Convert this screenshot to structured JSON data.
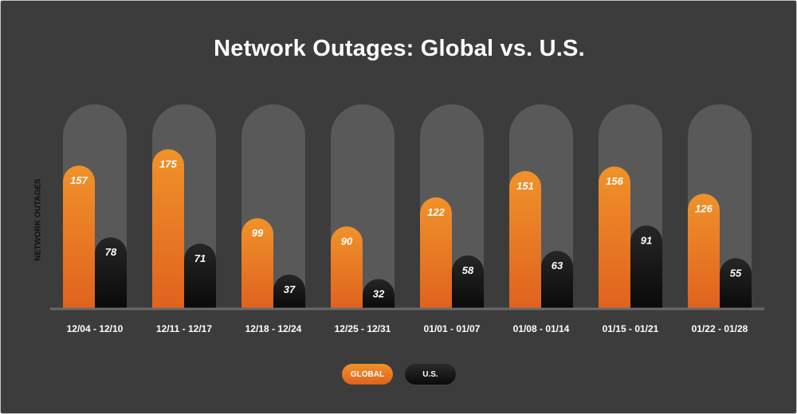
{
  "chart_data": {
    "type": "bar",
    "title": "Network Outages: Global vs. U.S.",
    "ylabel": "NETWORK OUTAGES",
    "xlabel": "",
    "categories": [
      "12/04 - 12/10",
      "12/11 - 12/17",
      "12/18 - 12/24",
      "12/25 - 12/31",
      "01/01 - 01/07",
      "01/08 - 01/14",
      "01/15 - 01/21",
      "01/22 - 01/28"
    ],
    "series": [
      {
        "name": "GLOBAL",
        "values": [
          157,
          175,
          99,
          90,
          122,
          151,
          156,
          126
        ],
        "color_top": "#f0922a",
        "color_bottom": "#e0621f"
      },
      {
        "name": "U.S.",
        "values": [
          78,
          71,
          37,
          32,
          58,
          63,
          91,
          55
        ],
        "color_top": "#262626",
        "color_bottom": "#0a0a0a"
      }
    ],
    "ylim": [
      0,
      200
    ],
    "grid": false,
    "data_labels": true,
    "legend_position": "bottom-center"
  },
  "colors": {
    "background": "#3c3c3c",
    "track": "#595959",
    "axis": "#6a6a6a",
    "text": "#ffffff"
  }
}
